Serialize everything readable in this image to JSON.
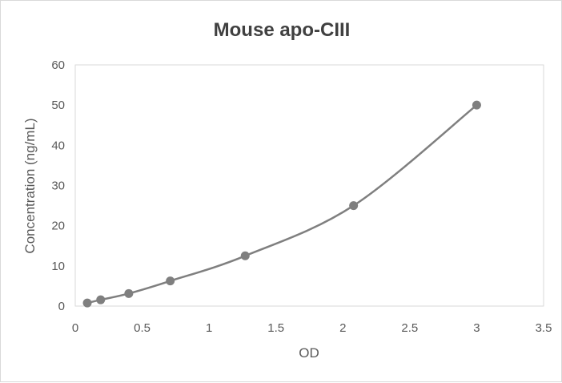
{
  "chart_data": {
    "type": "scatter",
    "title": "Mouse apo-CIII",
    "xlabel": "OD",
    "ylabel": "Concentration (ng/mL)",
    "xlim": [
      0,
      3.5
    ],
    "ylim": [
      0,
      60
    ],
    "xticks": [
      "0",
      "0.5",
      "1",
      "1.5",
      "2",
      "2.5",
      "3",
      "3.5"
    ],
    "yticks": [
      "0",
      "10",
      "20",
      "30",
      "40",
      "50",
      "60"
    ],
    "grid": false,
    "smooth_line": true,
    "series": [
      {
        "x": [
          0.09,
          0.19,
          0.4,
          0.71,
          1.27,
          2.08,
          3.0
        ],
        "y": [
          0.78,
          1.56,
          3.125,
          6.25,
          12.5,
          25,
          50
        ],
        "color": "#7f7f7f"
      }
    ]
  }
}
